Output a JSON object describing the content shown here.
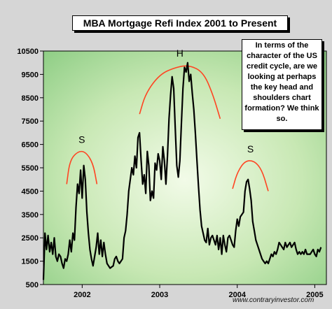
{
  "chart_data": {
    "type": "line",
    "title": "MBA Mortgage Refi Index 2001 to Present",
    "annotation_box": "In terms of the character of the US credit cycle, are we looking at perhaps the key head and shoulders chart formation?  We think so.",
    "pattern_labels": [
      "S",
      "H",
      "S"
    ],
    "credit": "www.contraryinvestor.com",
    "ylim": [
      500,
      10500
    ],
    "yticks": [
      500,
      1500,
      2500,
      3500,
      4500,
      5500,
      6500,
      7500,
      8500,
      9500,
      10500
    ],
    "ytick_labels": [
      "500",
      "1500",
      "2500",
      "3500",
      "4500",
      "5500",
      "6500",
      "7500",
      "8500",
      "9500",
      "10500"
    ],
    "xlim": [
      2001.5,
      2005.15
    ],
    "xtick_labels": [
      {
        "label": "2002",
        "x": 2002.0
      },
      {
        "label": "2003",
        "x": 2003.0
      },
      {
        "label": "2004",
        "x": 2004.0
      },
      {
        "label": "2005",
        "x": 2005.0
      }
    ],
    "grid": false,
    "series": [
      {
        "color": "#000000",
        "points": [
          [
            2001.5,
            700
          ],
          [
            2001.52,
            2700
          ],
          [
            2001.54,
            2000
          ],
          [
            2001.56,
            2600
          ],
          [
            2001.58,
            1900
          ],
          [
            2001.6,
            2300
          ],
          [
            2001.62,
            1800
          ],
          [
            2001.64,
            2500
          ],
          [
            2001.66,
            1700
          ],
          [
            2001.68,
            1500
          ],
          [
            2001.7,
            1800
          ],
          [
            2001.72,
            1700
          ],
          [
            2001.74,
            1400
          ],
          [
            2001.76,
            1200
          ],
          [
            2001.78,
            1600
          ],
          [
            2001.8,
            1500
          ],
          [
            2001.82,
            1800
          ],
          [
            2001.84,
            2400
          ],
          [
            2001.86,
            1900
          ],
          [
            2001.88,
            2700
          ],
          [
            2001.9,
            2400
          ],
          [
            2001.92,
            3800
          ],
          [
            2001.94,
            4800
          ],
          [
            2001.96,
            4400
          ],
          [
            2001.98,
            5400
          ],
          [
            2002.0,
            4200
          ],
          [
            2002.02,
            5600
          ],
          [
            2002.04,
            5000
          ],
          [
            2002.06,
            3600
          ],
          [
            2002.08,
            2700
          ],
          [
            2002.1,
            2000
          ],
          [
            2002.12,
            1600
          ],
          [
            2002.14,
            1300
          ],
          [
            2002.16,
            1700
          ],
          [
            2002.18,
            2100
          ],
          [
            2002.2,
            2700
          ],
          [
            2002.22,
            1800
          ],
          [
            2002.24,
            2400
          ],
          [
            2002.26,
            1700
          ],
          [
            2002.28,
            2300
          ],
          [
            2002.3,
            1800
          ],
          [
            2002.32,
            1400
          ],
          [
            2002.34,
            1300
          ],
          [
            2002.36,
            1200
          ],
          [
            2002.38,
            1250
          ],
          [
            2002.4,
            1300
          ],
          [
            2002.42,
            1600
          ],
          [
            2002.44,
            1700
          ],
          [
            2002.46,
            1500
          ],
          [
            2002.48,
            1400
          ],
          [
            2002.5,
            1500
          ],
          [
            2002.52,
            1600
          ],
          [
            2002.54,
            2500
          ],
          [
            2002.56,
            2800
          ],
          [
            2002.58,
            3500
          ],
          [
            2002.6,
            4500
          ],
          [
            2002.62,
            5000
          ],
          [
            2002.64,
            5500
          ],
          [
            2002.66,
            5200
          ],
          [
            2002.68,
            6000
          ],
          [
            2002.7,
            5500
          ],
          [
            2002.72,
            6800
          ],
          [
            2002.74,
            7000
          ],
          [
            2002.76,
            5800
          ],
          [
            2002.78,
            4800
          ],
          [
            2002.8,
            5200
          ],
          [
            2002.82,
            4400
          ],
          [
            2002.84,
            6200
          ],
          [
            2002.86,
            5600
          ],
          [
            2002.88,
            4100
          ],
          [
            2002.9,
            4500
          ],
          [
            2002.92,
            4200
          ],
          [
            2002.94,
            5700
          ],
          [
            2002.96,
            5400
          ],
          [
            2002.98,
            6100
          ],
          [
            2003.0,
            5800
          ],
          [
            2003.02,
            5000
          ],
          [
            2003.04,
            6400
          ],
          [
            2003.06,
            5800
          ],
          [
            2003.08,
            4800
          ],
          [
            2003.1,
            6000
          ],
          [
            2003.12,
            7600
          ],
          [
            2003.14,
            8600
          ],
          [
            2003.16,
            9400
          ],
          [
            2003.18,
            8900
          ],
          [
            2003.2,
            7200
          ],
          [
            2003.22,
            5600
          ],
          [
            2003.24,
            5100
          ],
          [
            2003.26,
            5800
          ],
          [
            2003.28,
            7400
          ],
          [
            2003.3,
            8900
          ],
          [
            2003.32,
            9800
          ],
          [
            2003.34,
            9600
          ],
          [
            2003.36,
            10000
          ],
          [
            2003.38,
            9200
          ],
          [
            2003.4,
            9500
          ],
          [
            2003.42,
            8700
          ],
          [
            2003.44,
            8000
          ],
          [
            2003.46,
            7000
          ],
          [
            2003.48,
            5800
          ],
          [
            2003.5,
            4700
          ],
          [
            2003.52,
            3700
          ],
          [
            2003.54,
            3000
          ],
          [
            2003.56,
            2700
          ],
          [
            2003.58,
            2400
          ],
          [
            2003.6,
            2300
          ],
          [
            2003.62,
            2900
          ],
          [
            2003.64,
            2200
          ],
          [
            2003.66,
            2500
          ],
          [
            2003.68,
            2600
          ],
          [
            2003.7,
            2400
          ],
          [
            2003.72,
            2200
          ],
          [
            2003.74,
            2600
          ],
          [
            2003.76,
            2000
          ],
          [
            2003.78,
            2500
          ],
          [
            2003.8,
            1800
          ],
          [
            2003.82,
            2600
          ],
          [
            2003.84,
            2200
          ],
          [
            2003.86,
            1900
          ],
          [
            2003.88,
            2500
          ],
          [
            2003.9,
            2600
          ],
          [
            2003.92,
            2400
          ],
          [
            2003.94,
            2200
          ],
          [
            2003.96,
            2100
          ],
          [
            2003.98,
            2800
          ],
          [
            2004.0,
            3300
          ],
          [
            2004.02,
            3000
          ],
          [
            2004.04,
            3400
          ],
          [
            2004.06,
            3500
          ],
          [
            2004.08,
            3600
          ],
          [
            2004.1,
            4500
          ],
          [
            2004.12,
            4900
          ],
          [
            2004.14,
            5000
          ],
          [
            2004.16,
            4600
          ],
          [
            2004.18,
            4100
          ],
          [
            2004.2,
            3200
          ],
          [
            2004.22,
            2800
          ],
          [
            2004.24,
            2400
          ],
          [
            2004.26,
            2200
          ],
          [
            2004.28,
            2000
          ],
          [
            2004.3,
            1800
          ],
          [
            2004.32,
            1600
          ],
          [
            2004.34,
            1500
          ],
          [
            2004.36,
            1400
          ],
          [
            2004.38,
            1500
          ],
          [
            2004.4,
            1400
          ],
          [
            2004.42,
            1600
          ],
          [
            2004.44,
            1800
          ],
          [
            2004.46,
            1700
          ],
          [
            2004.48,
            1900
          ],
          [
            2004.5,
            1800
          ],
          [
            2004.52,
            2000
          ],
          [
            2004.54,
            2300
          ],
          [
            2004.56,
            2200
          ],
          [
            2004.58,
            2100
          ],
          [
            2004.6,
            2000
          ],
          [
            2004.62,
            2300
          ],
          [
            2004.64,
            2100
          ],
          [
            2004.66,
            2200
          ],
          [
            2004.68,
            2300
          ],
          [
            2004.7,
            2100
          ],
          [
            2004.72,
            2200
          ],
          [
            2004.74,
            2300
          ],
          [
            2004.76,
            2000
          ],
          [
            2004.78,
            1800
          ],
          [
            2004.8,
            1900
          ],
          [
            2004.82,
            1800
          ],
          [
            2004.84,
            1900
          ],
          [
            2004.86,
            1800
          ],
          [
            2004.88,
            2000
          ],
          [
            2004.9,
            1800
          ],
          [
            2004.92,
            1800
          ],
          [
            2004.94,
            1800
          ],
          [
            2004.96,
            1900
          ],
          [
            2004.98,
            2000
          ],
          [
            2005.0,
            1800
          ],
          [
            2005.02,
            1700
          ],
          [
            2005.04,
            2000
          ],
          [
            2005.06,
            1900
          ],
          [
            2005.08,
            2100
          ]
        ]
      }
    ],
    "highlight_arcs": [
      {
        "color": "#ff4422",
        "label_index": 0,
        "points": [
          [
            2001.8,
            4800
          ],
          [
            2001.84,
            5800
          ],
          [
            2001.94,
            6200
          ],
          [
            2002.04,
            6200
          ],
          [
            2002.14,
            5700
          ],
          [
            2002.19,
            4800
          ]
        ]
      },
      {
        "color": "#ff4422",
        "label_index": 1,
        "points": [
          [
            2002.74,
            7800
          ],
          [
            2002.82,
            8700
          ],
          [
            2003.0,
            9500
          ],
          [
            2003.2,
            9800
          ],
          [
            2003.38,
            9900
          ],
          [
            2003.56,
            9600
          ],
          [
            2003.68,
            8700
          ],
          [
            2003.78,
            7600
          ]
        ]
      },
      {
        "color": "#ff4422",
        "label_index": 2,
        "points": [
          [
            2003.94,
            4600
          ],
          [
            2004.0,
            5300
          ],
          [
            2004.1,
            5800
          ],
          [
            2004.22,
            5800
          ],
          [
            2004.32,
            5400
          ],
          [
            2004.4,
            4500
          ]
        ]
      }
    ]
  }
}
